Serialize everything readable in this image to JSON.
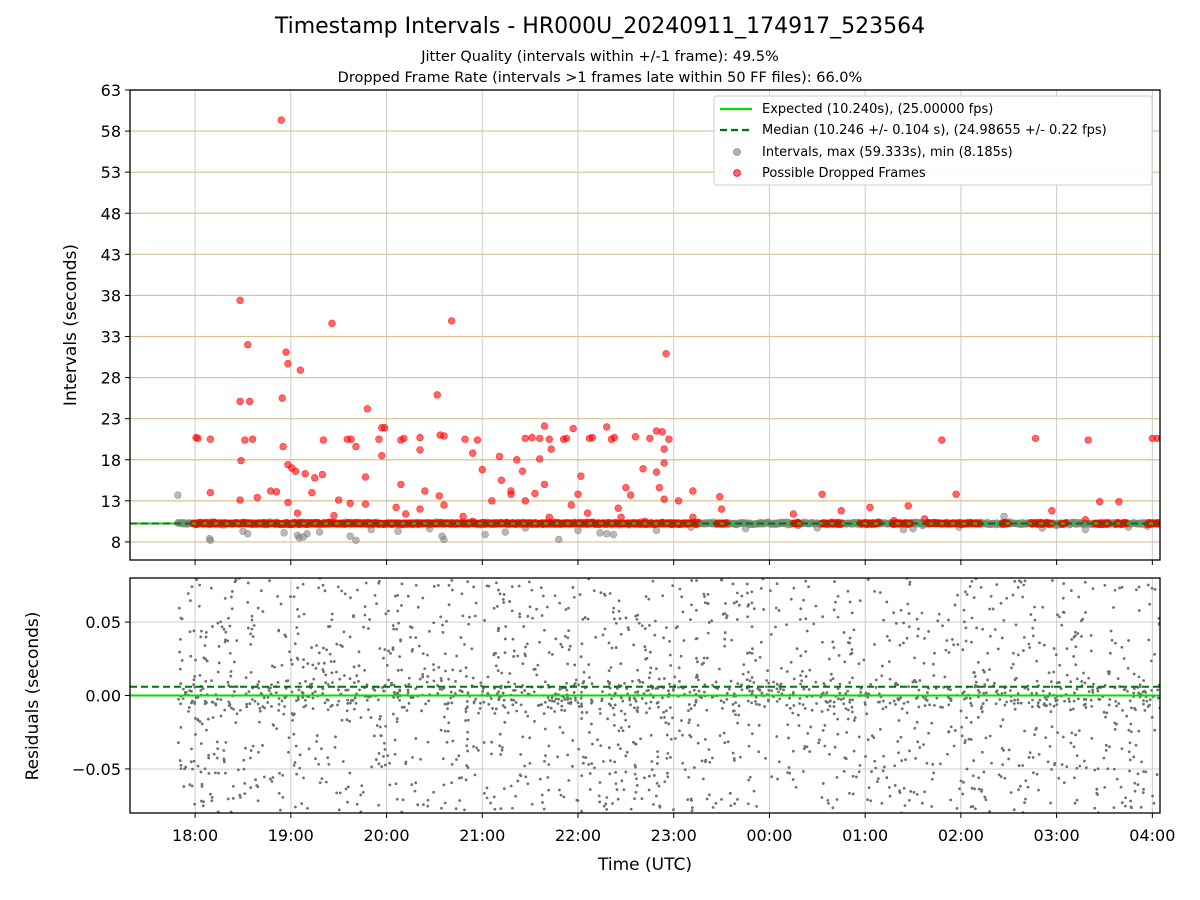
{
  "chart_data": [
    {
      "type": "scatter",
      "title": "Timestamp Intervals - HR000U_20240911_174917_523564",
      "subtitle_lines": [
        "Jitter Quality (intervals within +/-1 frame): 49.5%",
        "Dropped Frame Rate (intervals >1 frames late within 50 FF files): 66.0%"
      ],
      "ylabel": "Intervals (seconds)",
      "ylim": [
        5.8,
        63
      ],
      "xlim_hours": [
        17.32,
        28.08
      ],
      "yticks": [
        8,
        13,
        18,
        23,
        28,
        33,
        38,
        43,
        48,
        53,
        58,
        63
      ],
      "grid": "on",
      "legend_position": "upper-right",
      "expected_interval": 10.24,
      "median_interval": 10.246,
      "legend": [
        "Expected (10.240s), (25.00000 fps)",
        "Median (10.246 +/- 0.104 s), (24.98655 +/- 0.22 fps)",
        "Intervals, max (59.333s), min (8.185s)",
        "Possible Dropped Frames"
      ],
      "series": [
        {
          "name": "Intervals, max (59.333s), min (8.185s)",
          "color": "#808080",
          "points": [
            [
              17.82,
              13.7
            ],
            [
              18.15,
              8.4
            ],
            [
              18.16,
              8.2
            ],
            [
              18.5,
              9.3
            ],
            [
              18.55,
              9.0
            ],
            [
              18.93,
              9.1
            ],
            [
              19.07,
              8.8
            ],
            [
              19.09,
              8.5
            ],
            [
              19.13,
              8.6
            ],
            [
              19.17,
              9.0
            ],
            [
              19.3,
              9.2
            ],
            [
              19.62,
              8.7
            ],
            [
              19.68,
              8.2
            ],
            [
              19.84,
              9.5
            ],
            [
              20.12,
              9.3
            ],
            [
              20.45,
              9.6
            ],
            [
              20.58,
              8.7
            ],
            [
              20.6,
              8.3
            ],
            [
              21.03,
              8.9
            ],
            [
              21.24,
              9.2
            ],
            [
              21.45,
              9.7
            ],
            [
              21.8,
              8.3
            ],
            [
              22.0,
              9.4
            ],
            [
              22.23,
              9.1
            ],
            [
              22.3,
              9.0
            ],
            [
              22.37,
              8.9
            ],
            [
              22.82,
              9.4
            ],
            [
              23.18,
              9.8
            ],
            [
              23.75,
              9.6
            ],
            [
              24.5,
              9.7
            ],
            [
              25.4,
              9.5
            ],
            [
              25.5,
              9.6
            ],
            [
              25.98,
              9.8
            ],
            [
              26.45,
              11.1
            ],
            [
              26.85,
              9.7
            ],
            [
              27.3,
              9.5
            ],
            [
              27.75,
              9.8
            ],
            [
              27.95,
              9.9
            ],
            [
              23.65,
              10.1
            ],
            [
              24.3,
              10.0
            ],
            [
              24.95,
              10.1
            ],
            [
              25.6,
              10.0
            ],
            [
              26.2,
              10.2
            ],
            [
              27.0,
              10.0
            ]
          ]
        },
        {
          "name": "Possible Dropped Frames",
          "color": "#ff0000",
          "points": [
            [
              18.9,
              59.333
            ],
            [
              18.47,
              37.4
            ],
            [
              19.43,
              34.6
            ],
            [
              20.68,
              34.9
            ],
            [
              18.55,
              32.0
            ],
            [
              18.95,
              31.1
            ],
            [
              22.92,
              30.9
            ],
            [
              18.97,
              29.7
            ],
            [
              19.1,
              28.9
            ],
            [
              20.53,
              25.9
            ],
            [
              18.91,
              25.5
            ],
            [
              18.47,
              25.1
            ],
            [
              18.57,
              25.1
            ],
            [
              19.8,
              24.2
            ],
            [
              21.65,
              22.1
            ],
            [
              21.95,
              21.8
            ],
            [
              22.3,
              22.0
            ],
            [
              22.82,
              21.5
            ],
            [
              22.88,
              21.4
            ],
            [
              19.95,
              21.9
            ],
            [
              19.98,
              21.9
            ],
            [
              18.01,
              20.7
            ],
            [
              18.03,
              20.6
            ],
            [
              18.16,
              20.5
            ],
            [
              18.52,
              20.4
            ],
            [
              18.6,
              20.5
            ],
            [
              19.34,
              20.4
            ],
            [
              19.59,
              20.5
            ],
            [
              19.63,
              20.5
            ],
            [
              19.92,
              20.5
            ],
            [
              20.15,
              20.4
            ],
            [
              20.18,
              20.6
            ],
            [
              20.35,
              20.7
            ],
            [
              20.56,
              21.0
            ],
            [
              20.6,
              20.9
            ],
            [
              20.82,
              20.5
            ],
            [
              20.95,
              20.4
            ],
            [
              21.45,
              20.6
            ],
            [
              21.52,
              20.7
            ],
            [
              21.6,
              20.6
            ],
            [
              21.7,
              20.5
            ],
            [
              21.85,
              20.5
            ],
            [
              21.88,
              20.6
            ],
            [
              22.12,
              20.6
            ],
            [
              22.15,
              20.7
            ],
            [
              22.35,
              20.5
            ],
            [
              22.38,
              20.7
            ],
            [
              22.6,
              20.8
            ],
            [
              22.75,
              20.6
            ],
            [
              22.95,
              20.5
            ],
            [
              25.8,
              20.4
            ],
            [
              26.78,
              20.6
            ],
            [
              27.33,
              20.4
            ],
            [
              28.0,
              20.6
            ],
            [
              28.05,
              20.6
            ],
            [
              28.1,
              20.6
            ],
            [
              18.92,
              19.6
            ],
            [
              19.68,
              19.6
            ],
            [
              20.35,
              19.2
            ],
            [
              21.72,
              19.3
            ],
            [
              20.9,
              18.8
            ],
            [
              21.18,
              18.4
            ],
            [
              21.36,
              18.0
            ],
            [
              21.6,
              18.1
            ],
            [
              22.9,
              19.3
            ],
            [
              18.48,
              17.9
            ],
            [
              18.97,
              17.4
            ],
            [
              19.01,
              17.0
            ],
            [
              19.05,
              16.6
            ],
            [
              19.95,
              18.5
            ],
            [
              21.0,
              16.8
            ],
            [
              21.42,
              16.6
            ],
            [
              22.03,
              16.0
            ],
            [
              22.68,
              16.9
            ],
            [
              22.82,
              16.5
            ],
            [
              22.9,
              17.6
            ],
            [
              19.15,
              16.3
            ],
            [
              19.33,
              16.2
            ],
            [
              19.78,
              15.9
            ],
            [
              20.15,
              15.0
            ],
            [
              21.2,
              15.5
            ],
            [
              21.65,
              15.0
            ],
            [
              19.25,
              15.8
            ],
            [
              22.5,
              14.6
            ],
            [
              18.16,
              14.0
            ],
            [
              18.79,
              14.2
            ],
            [
              18.85,
              14.1
            ],
            [
              19.22,
              14.0
            ],
            [
              20.4,
              14.2
            ],
            [
              21.3,
              14.2
            ],
            [
              21.55,
              13.9
            ],
            [
              22.55,
              13.7
            ],
            [
              22.85,
              14.6
            ],
            [
              23.2,
              14.2
            ],
            [
              19.5,
              13.1
            ],
            [
              20.55,
              13.6
            ],
            [
              21.1,
              13.0
            ],
            [
              21.3,
              13.8
            ],
            [
              22.0,
              13.8
            ],
            [
              22.9,
              13.2
            ],
            [
              23.05,
              13.0
            ],
            [
              23.48,
              13.5
            ],
            [
              24.55,
              13.8
            ],
            [
              25.95,
              13.8
            ],
            [
              18.47,
              13.1
            ],
            [
              18.65,
              13.4
            ],
            [
              18.97,
              12.8
            ],
            [
              19.62,
              12.7
            ],
            [
              19.78,
              12.6
            ],
            [
              20.1,
              12.2
            ],
            [
              20.35,
              12.0
            ],
            [
              20.6,
              12.5
            ],
            [
              21.45,
              13.0
            ],
            [
              21.93,
              12.5
            ],
            [
              22.42,
              12.1
            ],
            [
              23.5,
              12.0
            ],
            [
              24.25,
              11.4
            ],
            [
              24.75,
              11.8
            ],
            [
              25.05,
              12.2
            ],
            [
              25.45,
              12.4
            ],
            [
              26.95,
              11.8
            ],
            [
              27.45,
              12.9
            ],
            [
              27.65,
              12.9
            ],
            [
              19.07,
              11.5
            ],
            [
              19.45,
              11.2
            ],
            [
              20.2,
              11.4
            ],
            [
              20.8,
              11.1
            ],
            [
              21.7,
              11.0
            ],
            [
              22.1,
              11.5
            ],
            [
              22.45,
              11.0
            ],
            [
              23.2,
              11.0
            ],
            [
              25.3,
              10.6
            ],
            [
              25.62,
              10.8
            ],
            [
              27.3,
              10.7
            ],
            [
              18.2,
              10.4
            ],
            [
              19.4,
              10.4
            ],
            [
              20.9,
              10.5
            ],
            [
              22.7,
              10.5
            ]
          ]
        }
      ],
      "dense_band": {
        "gray_segments": [
          [
            17.82,
            28.08
          ]
        ],
        "red_segments": [
          [
            17.98,
            23.26
          ],
          [
            23.45,
            23.55
          ],
          [
            24.25,
            24.32
          ],
          [
            24.55,
            24.75
          ],
          [
            24.95,
            25.15
          ],
          [
            25.28,
            25.48
          ],
          [
            25.65,
            26.2
          ],
          [
            26.43,
            26.5
          ],
          [
            26.73,
            26.95
          ],
          [
            27.05,
            27.1
          ],
          [
            27.4,
            27.55
          ],
          [
            27.62,
            27.73
          ],
          [
            27.95,
            28.08
          ]
        ],
        "center": 10.25,
        "spread": 0.5
      }
    },
    {
      "type": "scatter",
      "ylabel": "Residuals (seconds)",
      "xlabel": "Time (UTC)",
      "ylim": [
        -0.08,
        0.08
      ],
      "yticks": [
        0.05,
        0.0,
        -0.05
      ],
      "ytick_labels": [
        "0.05",
        "0.00",
        "−0.05"
      ],
      "xtick_labels": [
        "18:00",
        "19:00",
        "20:00",
        "21:00",
        "22:00",
        "23:00",
        "00:00",
        "01:00",
        "02:00",
        "03:00",
        "04:00"
      ],
      "xtick_hours": [
        18,
        19,
        20,
        21,
        22,
        23,
        24,
        25,
        26,
        27,
        28
      ],
      "xlim_hours": [
        17.32,
        28.08
      ],
      "grid": "on",
      "expected_residual": 0.0,
      "median_residual": 0.006,
      "residual_points": {
        "color": "#707070",
        "x_range": [
          17.82,
          28.08
        ],
        "y_range": [
          -0.08,
          0.08
        ],
        "approx_count": 2200
      }
    }
  ],
  "colors": {
    "expected_line": "#00dd00",
    "median_line": "#007700",
    "interval_points": "#808080",
    "dropped_points": "#ff0000",
    "hgrid_top": "#d6c38e",
    "grid": "#cccccc"
  }
}
